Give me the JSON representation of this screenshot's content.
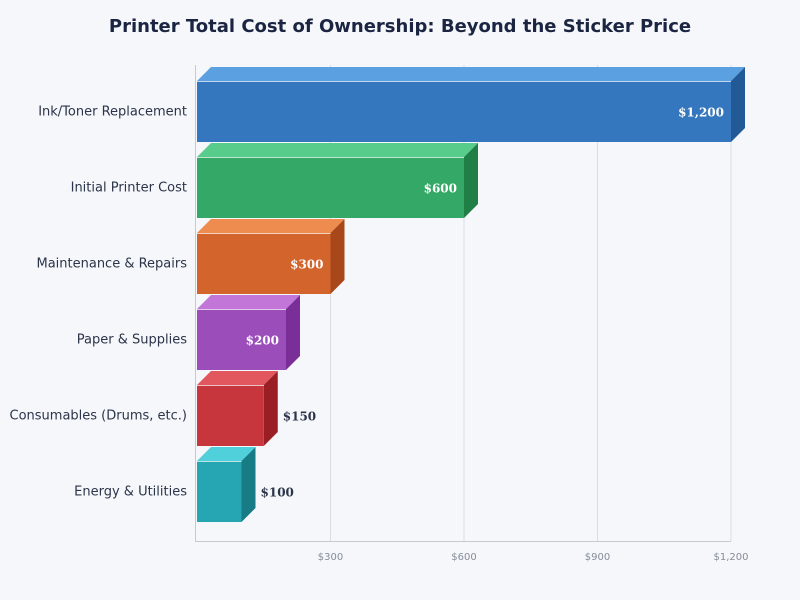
{
  "chart_data": {
    "type": "bar",
    "orientation": "horizontal",
    "style": "3d",
    "title": "Printer Total Cost of Ownership: Beyond the Sticker Price",
    "categories": [
      "Ink/Toner Replacement",
      "Initial Printer Cost",
      "Maintenance & Repairs",
      "Paper & Supplies",
      "Consumables (Drums, etc.)",
      "Energy & Utilities"
    ],
    "values": [
      1200,
      600,
      300,
      200,
      150,
      100
    ],
    "data_labels": [
      "$1,200",
      "$600",
      "$300",
      "$200",
      "$150",
      "$100"
    ],
    "colors": [
      "#3477be",
      "#34a866",
      "#d3642c",
      "#9b4dba",
      "#c8363d",
      "#26a5b3"
    ],
    "top_colors": [
      "#5ba0e0",
      "#58cc8a",
      "#ee8c50",
      "#c277d8",
      "#e2575d",
      "#4fd0db"
    ],
    "side_colors": [
      "#215a96",
      "#1f7f45",
      "#a8481a",
      "#7a2e98",
      "#9a1f24",
      "#177c86"
    ],
    "xlim": [
      0,
      1200
    ],
    "xticks": [
      300,
      600,
      900,
      1200
    ],
    "xtick_labels": [
      "$300",
      "$600",
      "$900",
      "$1,200"
    ],
    "grid": true,
    "xlabel": "",
    "ylabel": ""
  }
}
